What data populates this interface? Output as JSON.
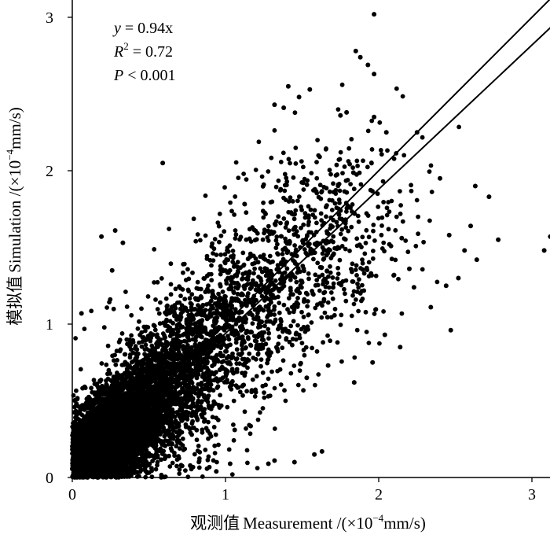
{
  "chart_data": {
    "type": "scatter",
    "title": "",
    "xlabel_cn": "观测值",
    "xlabel": "Measurement /(×10",
    "xlabel_exp": "−4",
    "xlabel_unit": "mm/s)",
    "ylabel_cn": "模拟值",
    "ylabel": "Simulation /(×10",
    "ylabel_exp": "−4",
    "ylabel_unit": "mm/s)",
    "xlim": [
      0,
      3.1
    ],
    "ylim": [
      0,
      3.1
    ],
    "xticks": [
      "0",
      "1",
      "2",
      "3"
    ],
    "yticks": [
      "0",
      "1",
      "2",
      "3"
    ],
    "grid": false,
    "annotations": {
      "equation_lhs": "y",
      "equation_rhs": " = 0.94x",
      "r2_lhs": "R",
      "r2_exp": "2",
      "r2_rhs": " = 0.72",
      "p_lhs": "P",
      "p_rhs": " < 0.001"
    },
    "series": [
      {
        "type": "scatter",
        "marker_color": "#000000",
        "points": [
          [
            1.97,
            3.02
          ],
          [
            1.97,
            2.63
          ],
          [
            1.85,
            2.78
          ],
          [
            1.88,
            2.74
          ],
          [
            1.93,
            2.69
          ],
          [
            1.55,
            2.53
          ],
          [
            1.41,
            2.55
          ],
          [
            1.48,
            2.48
          ],
          [
            1.32,
            2.43
          ],
          [
            1.38,
            2.41
          ],
          [
            1.97,
            2.35
          ],
          [
            1.79,
            2.38
          ],
          [
            1.75,
            2.36
          ],
          [
            2.05,
            2.25
          ],
          [
            2.25,
            2.25
          ],
          [
            3.12,
            1.57
          ],
          [
            3.08,
            1.48
          ],
          [
            2.78,
            1.55
          ],
          [
            2.63,
            1.9
          ],
          [
            2.72,
            1.83
          ],
          [
            2.6,
            1.64
          ],
          [
            2.64,
            1.42
          ],
          [
            2.56,
            1.48
          ],
          [
            2.46,
            1.58
          ],
          [
            2.4,
            1.95
          ],
          [
            2.52,
            1.3
          ],
          [
            2.44,
            1.25
          ],
          [
            2.47,
            0.96
          ],
          [
            2.34,
            1.11
          ],
          [
            2.23,
            1.24
          ],
          [
            2.2,
            1.36
          ],
          [
            2.15,
            1.56
          ],
          [
            2.1,
            1.32
          ],
          [
            2.07,
            1.52
          ],
          [
            2.14,
            0.85
          ],
          [
            2.04,
            0.93
          ],
          [
            1.96,
            0.75
          ],
          [
            1.84,
            0.62
          ],
          [
            1.67,
            0.73
          ],
          [
            1.53,
            0.65
          ],
          [
            1.63,
            0.17
          ],
          [
            1.58,
            0.15
          ],
          [
            1.45,
            0.1
          ],
          [
            1.32,
            0.11
          ],
          [
            1.28,
            0.09
          ],
          [
            1.06,
            0.31
          ],
          [
            1.03,
            0.09
          ],
          [
            0.94,
            0.04
          ],
          [
            0.59,
            2.05
          ],
          [
            0.33,
            1.53
          ],
          [
            0.28,
            1.61
          ],
          [
            0.19,
            1.57
          ],
          [
            0.26,
            1.35
          ],
          [
            0.06,
            1.07
          ]
        ]
      },
      {
        "type": "line",
        "name": "",
        "slope": 1.0,
        "x": [
          0,
          3.18
        ],
        "y": [
          0,
          3.18
        ]
      },
      {
        "type": "line",
        "name": "",
        "slope": 0.94,
        "x": [
          0,
          3.15
        ],
        "y": [
          0,
          2.96
        ]
      }
    ]
  }
}
